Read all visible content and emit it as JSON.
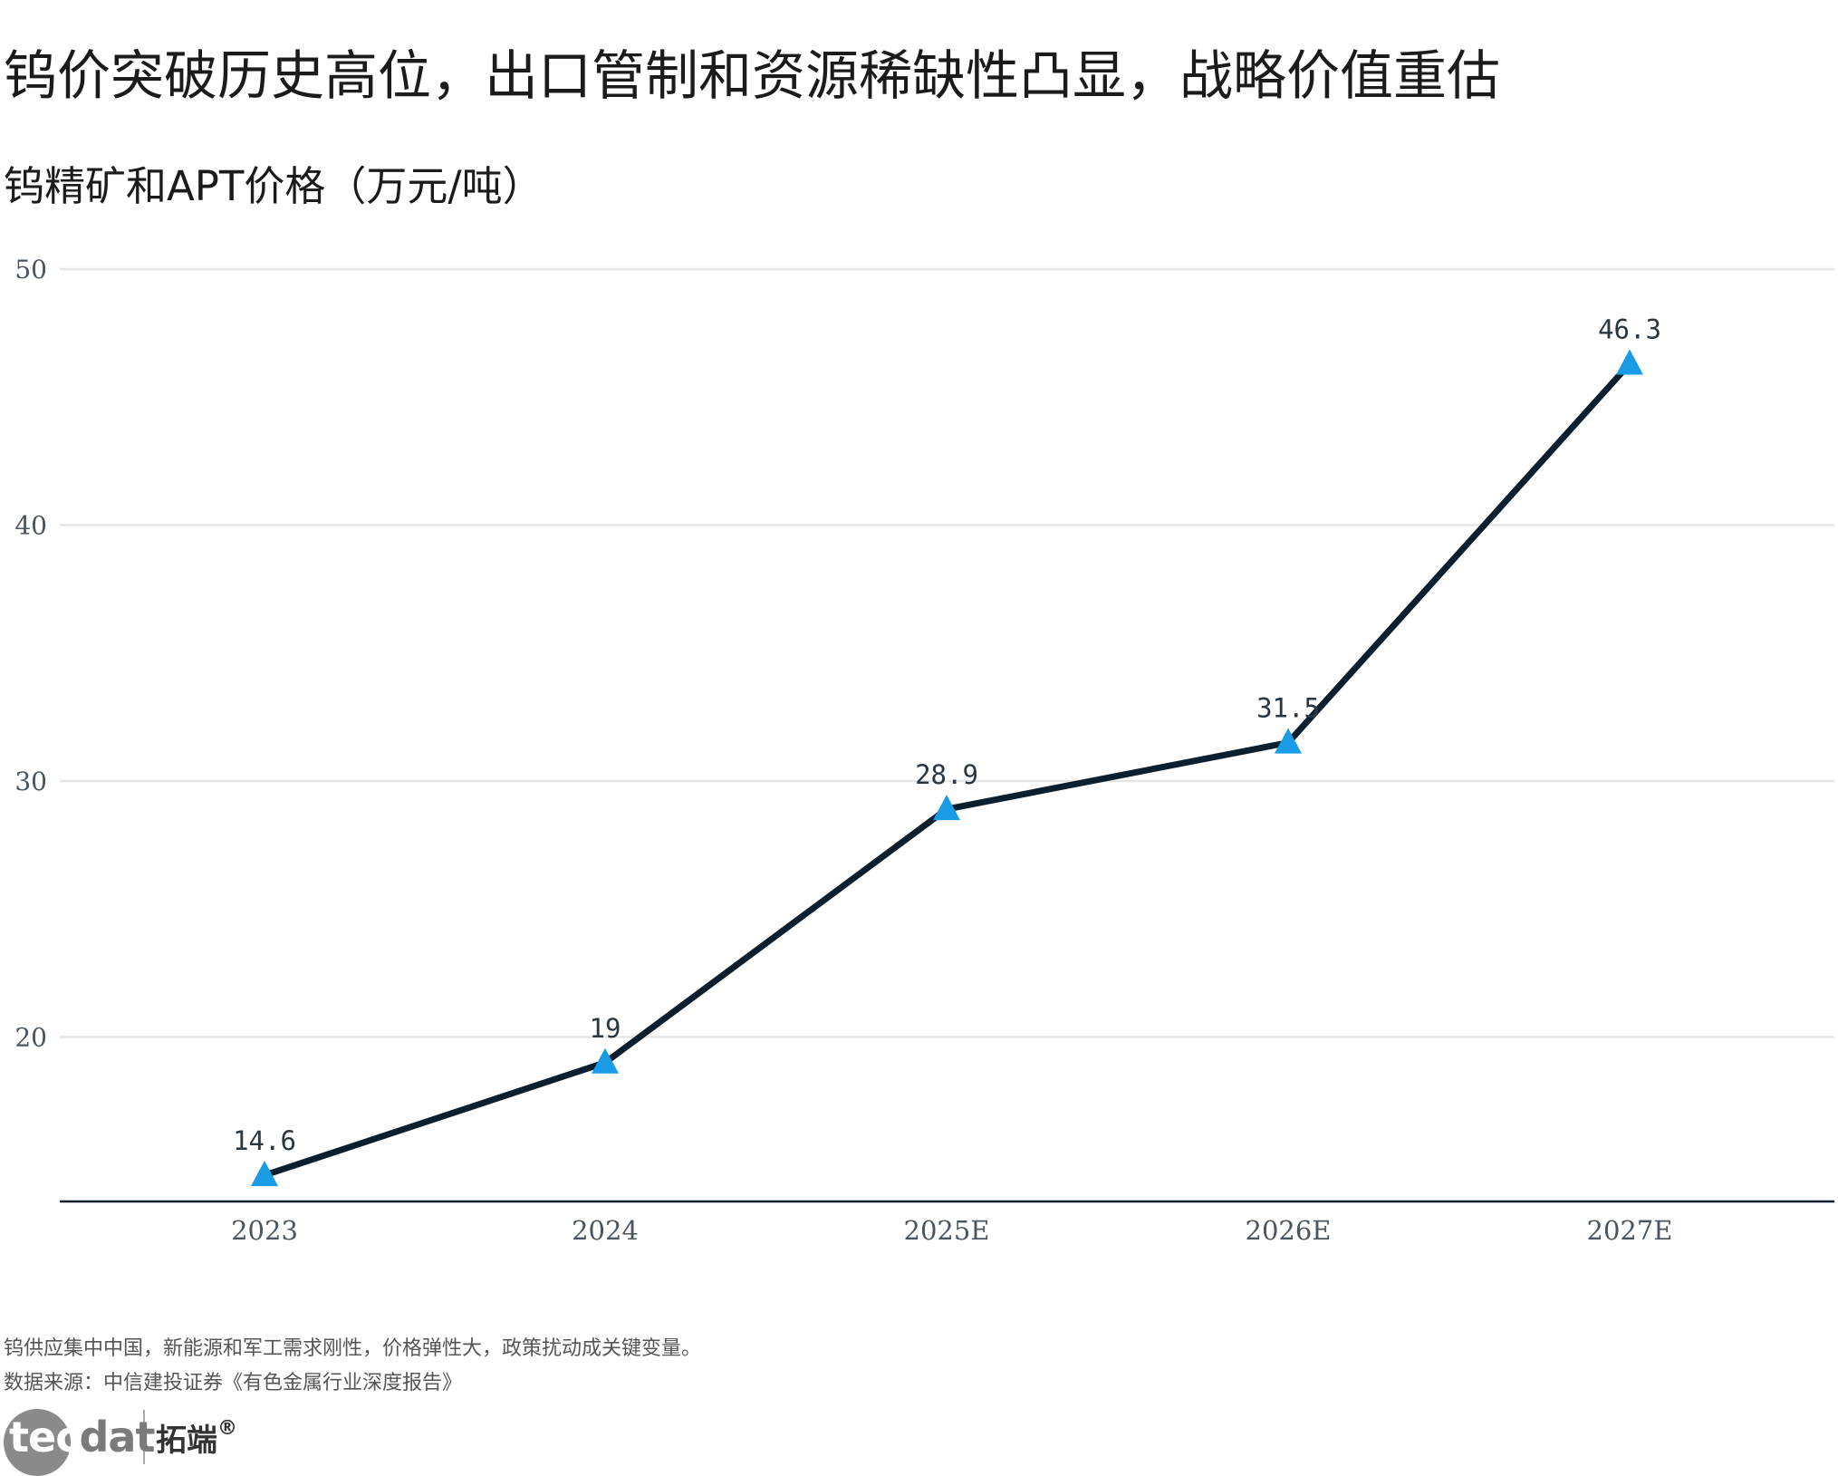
{
  "title": "钨价突破历史高位，出口管制和资源稀缺性凸显，战略价值重估",
  "subtitle": "钨精矿和APT价格（万元/吨）",
  "note": "钨供应集中中国，新能源和军工需求刚性，价格弹性大，政策扰动成关键变量。",
  "source": "数据来源：中信建投证券《有色金属行业深度报告》",
  "logo": {
    "text_a": "tec",
    "text_b": "dat",
    "cn": "拓端",
    "mark": "®"
  },
  "colors": {
    "line": "#0b1f2e",
    "marker": "#1a9be6",
    "grid": "#e6e6e6",
    "axis": "#0b1f2e"
  },
  "chart_data": {
    "type": "line",
    "categories": [
      "2023",
      "2024",
      "2025E",
      "2026E",
      "2027E"
    ],
    "values": [
      14.6,
      19,
      28.9,
      31.5,
      46.3
    ],
    "value_labels": [
      "14.6",
      "19",
      "28.9",
      "31.5",
      "46.3"
    ],
    "y_ticks": [
      "20",
      "30",
      "40",
      "50"
    ],
    "ylim": [
      13.5,
      50
    ],
    "grid": true,
    "marker": "triangle"
  }
}
